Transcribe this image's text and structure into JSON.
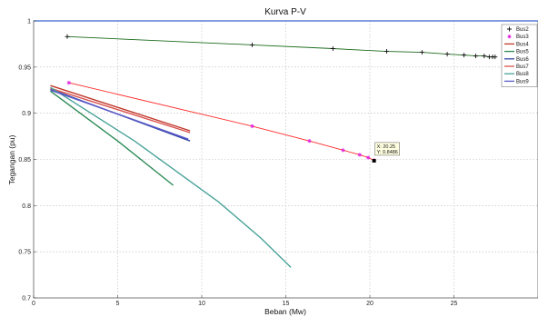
{
  "chart_data": {
    "type": "line",
    "title": "Kurva P-V",
    "xlabel": "Beban (Mw)",
    "ylabel": "Tegangan (pu)",
    "xlim": [
      0,
      30
    ],
    "ylim": [
      0.7,
      1.0
    ],
    "x_ticks": [
      "0",
      "5",
      "10",
      "15",
      "20",
      "25"
    ],
    "y_ticks": [
      "0.7",
      "0.75",
      "0.8",
      "0.85",
      "0.9",
      "0.95",
      "1"
    ],
    "x_tick_values": [
      0,
      5,
      10,
      15,
      20,
      25
    ],
    "y_tick_values": [
      0.7,
      0.75,
      0.8,
      0.85,
      0.9,
      0.95,
      1.0
    ],
    "grid": true,
    "legend_position": "top-right",
    "series": [
      {
        "name": "Bus2",
        "color": "#1a6b1a",
        "marker": "plus",
        "x": [
          2.0,
          13.0,
          17.8,
          21.0,
          23.1,
          24.6,
          25.6,
          26.3,
          26.8,
          27.1,
          27.3,
          27.45
        ],
        "y": [
          0.983,
          0.974,
          0.97,
          0.967,
          0.966,
          0.964,
          0.963,
          0.962,
          0.962,
          0.961,
          0.961,
          0.961
        ]
      },
      {
        "name": "Bus3",
        "color": "#ff2a2a",
        "marker": "star",
        "x": [
          2.1,
          13.0,
          16.4,
          18.4,
          19.4,
          19.9,
          20.25
        ],
        "y": [
          0.933,
          0.886,
          0.87,
          0.86,
          0.855,
          0.852,
          0.849
        ]
      },
      {
        "name": "Bus4",
        "color": "#c0392b",
        "marker": "none",
        "x": [
          1.0,
          9.3
        ],
        "y": [
          0.93,
          0.881
        ]
      },
      {
        "name": "Bus5",
        "color": "#2e8b57",
        "marker": "none",
        "x": [
          1.0,
          5.0,
          8.3
        ],
        "y": [
          0.924,
          0.87,
          0.822
        ]
      },
      {
        "name": "Bus6",
        "color": "#3344aa",
        "marker": "none",
        "x": [
          1.0,
          9.3
        ],
        "y": [
          0.926,
          0.87
        ]
      },
      {
        "name": "Bus7",
        "color": "#d9534f",
        "marker": "none",
        "x": [
          1.0,
          9.3
        ],
        "y": [
          0.927,
          0.879
        ]
      },
      {
        "name": "Bus8",
        "color": "#4aa39a",
        "marker": "none",
        "x": [
          1.0,
          6.0,
          11.0,
          13.5,
          15.3
        ],
        "y": [
          0.928,
          0.87,
          0.804,
          0.765,
          0.733
        ]
      },
      {
        "name": "Bus9",
        "color": "#5a5ac8",
        "marker": "none",
        "x": [
          1.0,
          9.2
        ],
        "y": [
          0.925,
          0.872
        ]
      }
    ],
    "datatip": {
      "x_text": "X: 20.25",
      "y_text": "Y: 0.8486",
      "x": 20.25,
      "y": 0.8486
    }
  }
}
